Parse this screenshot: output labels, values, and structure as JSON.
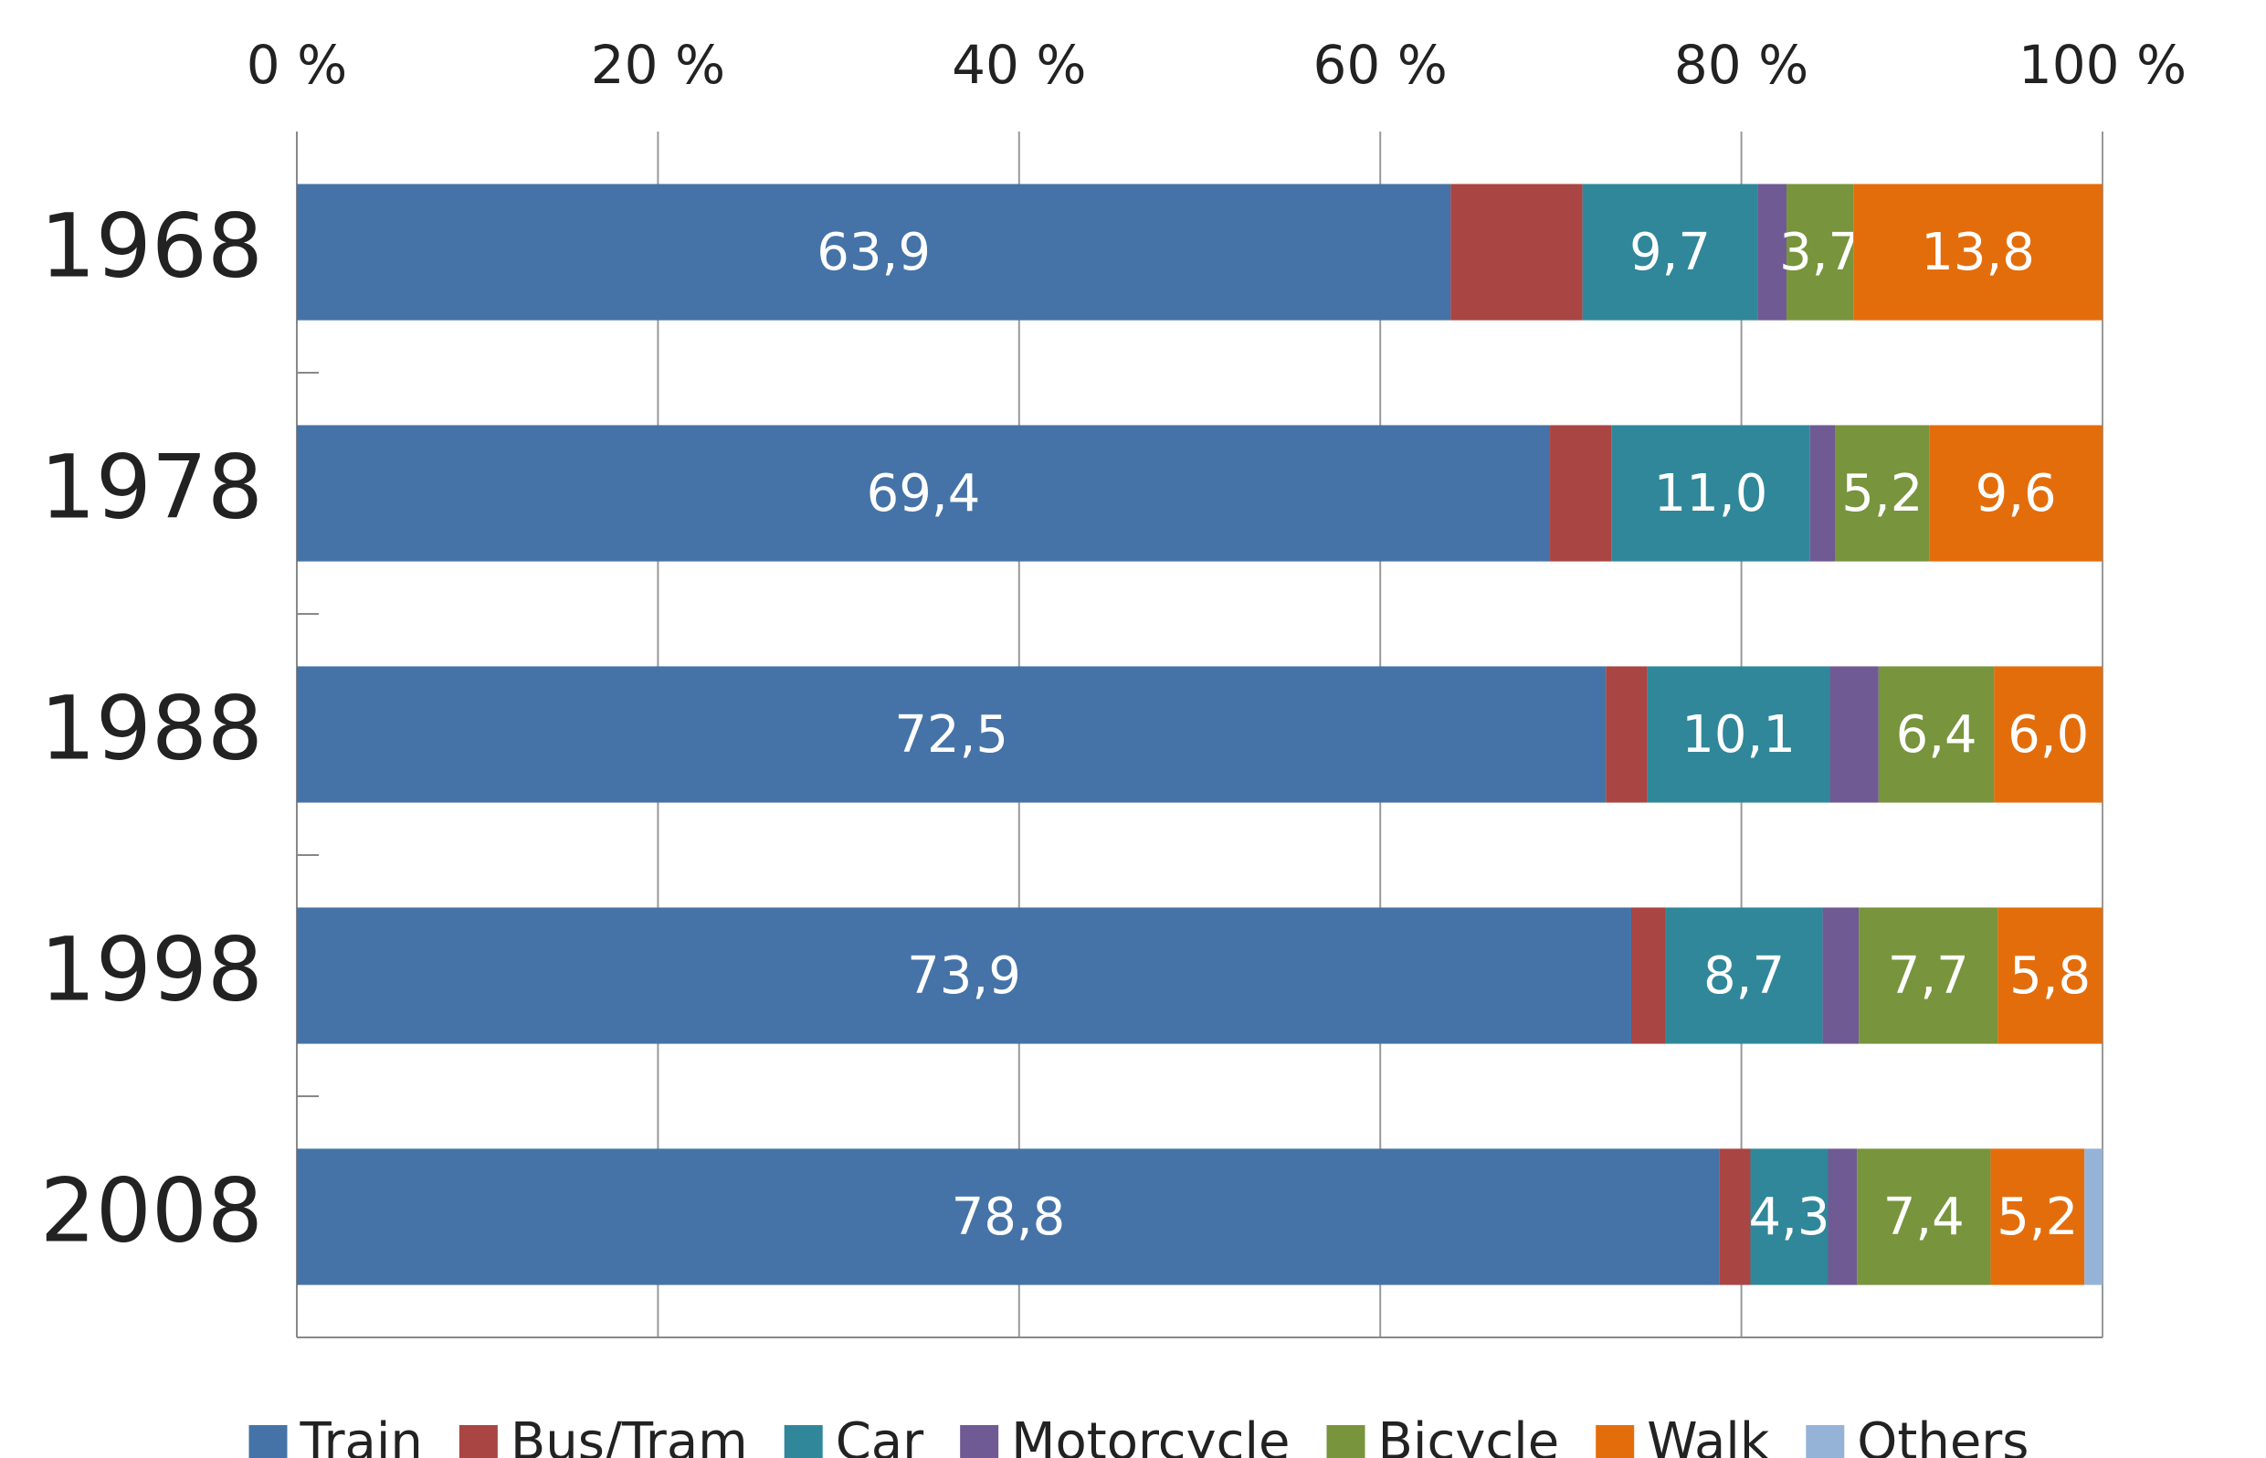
{
  "chart_data": {
    "type": "stacked_bar_horizontal",
    "categories": [
      "1968",
      "1978",
      "1988",
      "1998",
      "2008"
    ],
    "series": [
      {
        "name": "Train",
        "color": "#4573a7",
        "values": [
          63.9,
          69.4,
          72.5,
          73.9,
          78.8
        ],
        "value_labels": [
          "63,9",
          "69,4",
          "72,5",
          "73,9",
          "78,8"
        ]
      },
      {
        "name": "Bus/Tram",
        "color": "#a94543",
        "values": [
          7.3,
          3.4,
          2.3,
          1.9,
          1.7
        ],
        "value_labels": [
          null,
          null,
          null,
          null,
          null
        ]
      },
      {
        "name": "Car",
        "color": "#30879a",
        "values": [
          9.7,
          11.0,
          10.1,
          8.7,
          4.3
        ],
        "value_labels": [
          "9,7",
          "11,0",
          "10,1",
          "8,7",
          "4,3"
        ]
      },
      {
        "name": "Motorcycle",
        "color": "#705a93",
        "values": [
          1.6,
          1.4,
          2.7,
          2.0,
          1.6
        ],
        "value_labels": [
          null,
          null,
          null,
          null,
          null
        ]
      },
      {
        "name": "Bicycle",
        "color": "#78943c",
        "values": [
          3.7,
          5.2,
          6.4,
          7.7,
          7.4
        ],
        "value_labels": [
          "3,7",
          "5,2",
          "6,4",
          "7,7",
          "7,4"
        ]
      },
      {
        "name": "Walk",
        "color": "#e46d0b",
        "values": [
          13.8,
          9.6,
          6.0,
          5.8,
          5.2
        ],
        "value_labels": [
          "13,8",
          "9,6",
          "6,0",
          "5,8",
          "5,2"
        ]
      },
      {
        "name": "Others",
        "color": "#95b3d7",
        "values": [
          0,
          0,
          0,
          0,
          1.0
        ],
        "value_labels": [
          null,
          null,
          null,
          null,
          null
        ]
      }
    ],
    "xlim": [
      0,
      100
    ],
    "xticks": [
      {
        "value": 0,
        "label": "0 %"
      },
      {
        "value": 20,
        "label": "20 %"
      },
      {
        "value": 40,
        "label": "40 %"
      },
      {
        "value": 60,
        "label": "60 %"
      },
      {
        "value": 80,
        "label": "80 %"
      },
      {
        "value": 100,
        "label": "100 %"
      }
    ],
    "grid": true,
    "legend": "bottom"
  }
}
